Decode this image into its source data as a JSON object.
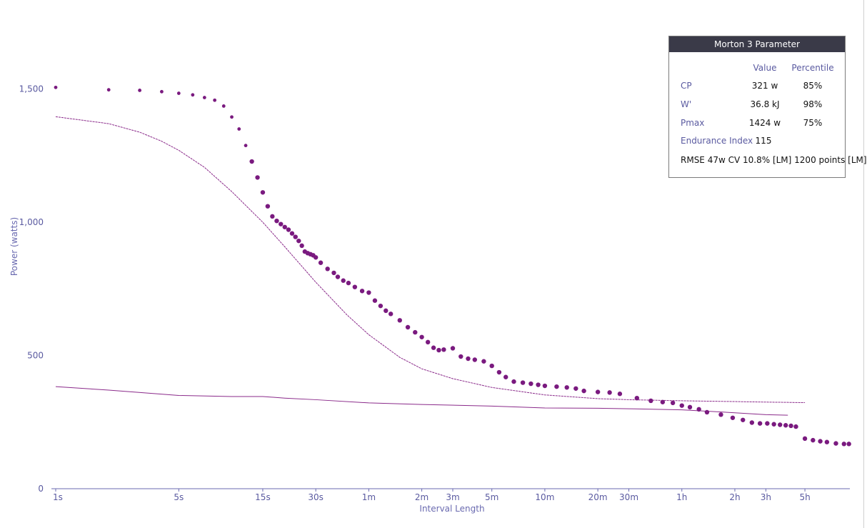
{
  "chart_data": {
    "type": "scatter",
    "xlabel": "Interval Length",
    "ylabel": "Power (watts)",
    "x_scale": "log",
    "x_unit": "seconds",
    "xlim": [
      1,
      32400
    ],
    "ylim": [
      0,
      1700
    ],
    "y_ticks": [
      0,
      500,
      1000,
      1500
    ],
    "y_tick_labels": [
      "0",
      "500",
      "1,000",
      "1,500"
    ],
    "x_ticks": [
      1,
      5,
      15,
      30,
      60,
      120,
      180,
      300,
      600,
      1200,
      1800,
      3600,
      7200,
      10800,
      18000
    ],
    "x_tick_labels": [
      "1s",
      "5s",
      "15s",
      "30s",
      "1m",
      "2m",
      "3m",
      "5m",
      "10m",
      "20m",
      "30m",
      "1h",
      "2h",
      "3h",
      "5h"
    ],
    "grid": false,
    "colors": {
      "points": "#7a1a7f",
      "model": "#8a2a8a",
      "axis": "#6a6ab0"
    },
    "series": [
      {
        "kind": "points",
        "x": [
          1,
          2,
          3,
          4,
          5,
          6,
          7,
          8,
          9,
          10,
          11,
          12,
          13,
          14,
          15,
          16,
          17,
          18,
          19,
          20,
          21,
          22,
          23,
          24,
          25,
          26,
          27,
          28,
          29,
          30,
          32,
          35,
          38,
          40,
          43,
          46,
          50,
          55,
          60,
          65,
          70,
          75,
          80,
          90,
          100,
          110,
          120,
          130,
          140,
          150,
          160,
          180,
          200,
          220,
          240,
          270,
          300,
          330,
          360,
          400,
          450,
          500,
          550,
          600,
          700,
          800,
          900,
          1000,
          1200,
          1400,
          1600,
          2000,
          2400,
          2800,
          3200,
          3600,
          4000,
          4500,
          5000,
          6000,
          7000,
          8000,
          9000,
          10000,
          11000,
          12000,
          13000,
          14000,
          15000,
          16000,
          18000,
          20000,
          22000,
          24000,
          27000,
          30000,
          32000
        ],
        "y": [
          1506,
          1497,
          1495,
          1490,
          1484,
          1478,
          1468,
          1458,
          1436,
          1395,
          1350,
          1288,
          1228,
          1168,
          1112,
          1060,
          1022,
          1005,
          993,
          982,
          972,
          958,
          945,
          930,
          912,
          890,
          884,
          880,
          876,
          868,
          848,
          825,
          810,
          795,
          781,
          772,
          757,
          742,
          736,
          706,
          686,
          668,
          656,
          632,
          606,
          587,
          569,
          550,
          529,
          520,
          522,
          527,
          496,
          488,
          484,
          478,
          461,
          437,
          419,
          402,
          398,
          394,
          390,
          386,
          383,
          380,
          376,
          367,
          363,
          361,
          356,
          340,
          330,
          325,
          322,
          312,
          306,
          298,
          287,
          278,
          266,
          258,
          248,
          245,
          245,
          242,
          240,
          238,
          236,
          233,
          188,
          182,
          178,
          175,
          170,
          168,
          168
        ]
      },
      {
        "kind": "model-total",
        "x": [
          1,
          2,
          3,
          4,
          5,
          7,
          10,
          15,
          20,
          30,
          45,
          60,
          90,
          120,
          180,
          300,
          600,
          1200,
          1800,
          3600,
          7200,
          10800,
          14400,
          18000
        ],
        "y": [
          1396,
          1370,
          1338,
          1304,
          1270,
          1206,
          1115,
          1000,
          908,
          775,
          653,
          578,
          493,
          450,
          413,
          380,
          352,
          338,
          334,
          330,
          327,
          325,
          324,
          323
        ]
      },
      {
        "kind": "model-cp",
        "x": [
          1,
          2,
          5,
          10,
          15,
          20,
          30,
          60,
          120,
          300,
          600,
          1200,
          1800,
          3600,
          7200,
          10800,
          14400
        ],
        "y": [
          383,
          370,
          350,
          346,
          346,
          340,
          334,
          322,
          316,
          310,
          303,
          302,
          300,
          296,
          285,
          278,
          276
        ]
      }
    ]
  },
  "model_box": {
    "title": "Morton 3 Parameter",
    "col_value": "Value",
    "col_percentile": "Percentile",
    "rows": [
      {
        "name": "CP",
        "value": "321 w",
        "percentile": "85%"
      },
      {
        "name": "W'",
        "value": "36.8 kJ",
        "percentile": "98%"
      },
      {
        "name": "Pmax",
        "value": "1424 w",
        "percentile": "75%"
      },
      {
        "name": "Endurance Index",
        "value": "115",
        "percentile": ""
      }
    ],
    "rmse": "RMSE 47w CV 10.8% [LM] 1200 points [LM]"
  }
}
